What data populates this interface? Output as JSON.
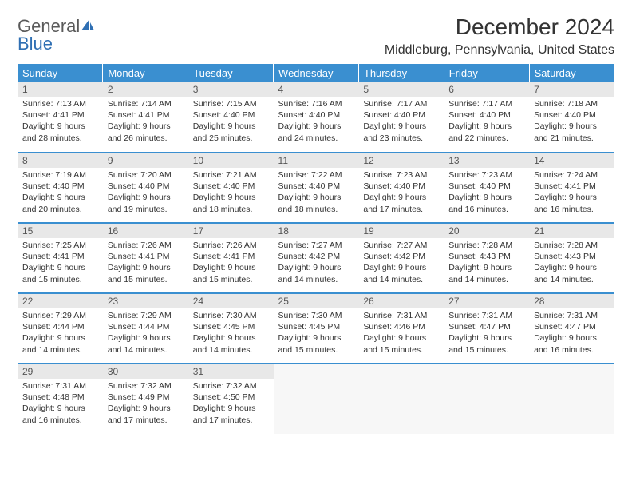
{
  "brand": {
    "part1": "General",
    "part2": "Blue"
  },
  "title": "December 2024",
  "location": "Middleburg, Pennsylvania, United States",
  "colors": {
    "header_bg": "#3a8fd0",
    "header_text": "#ffffff",
    "daynum_bg": "#e8e8e8",
    "border": "#3a8fd0",
    "brand_gray": "#5a5a5a",
    "brand_blue": "#2f6fb3",
    "icon_fill": "#2f6fb3"
  },
  "day_headers": [
    "Sunday",
    "Monday",
    "Tuesday",
    "Wednesday",
    "Thursday",
    "Friday",
    "Saturday"
  ],
  "weeks": [
    [
      {
        "n": "1",
        "sr": "7:13 AM",
        "ss": "4:41 PM",
        "dl": "9 hours and 28 minutes."
      },
      {
        "n": "2",
        "sr": "7:14 AM",
        "ss": "4:41 PM",
        "dl": "9 hours and 26 minutes."
      },
      {
        "n": "3",
        "sr": "7:15 AM",
        "ss": "4:40 PM",
        "dl": "9 hours and 25 minutes."
      },
      {
        "n": "4",
        "sr": "7:16 AM",
        "ss": "4:40 PM",
        "dl": "9 hours and 24 minutes."
      },
      {
        "n": "5",
        "sr": "7:17 AM",
        "ss": "4:40 PM",
        "dl": "9 hours and 23 minutes."
      },
      {
        "n": "6",
        "sr": "7:17 AM",
        "ss": "4:40 PM",
        "dl": "9 hours and 22 minutes."
      },
      {
        "n": "7",
        "sr": "7:18 AM",
        "ss": "4:40 PM",
        "dl": "9 hours and 21 minutes."
      }
    ],
    [
      {
        "n": "8",
        "sr": "7:19 AM",
        "ss": "4:40 PM",
        "dl": "9 hours and 20 minutes."
      },
      {
        "n": "9",
        "sr": "7:20 AM",
        "ss": "4:40 PM",
        "dl": "9 hours and 19 minutes."
      },
      {
        "n": "10",
        "sr": "7:21 AM",
        "ss": "4:40 PM",
        "dl": "9 hours and 18 minutes."
      },
      {
        "n": "11",
        "sr": "7:22 AM",
        "ss": "4:40 PM",
        "dl": "9 hours and 18 minutes."
      },
      {
        "n": "12",
        "sr": "7:23 AM",
        "ss": "4:40 PM",
        "dl": "9 hours and 17 minutes."
      },
      {
        "n": "13",
        "sr": "7:23 AM",
        "ss": "4:40 PM",
        "dl": "9 hours and 16 minutes."
      },
      {
        "n": "14",
        "sr": "7:24 AM",
        "ss": "4:41 PM",
        "dl": "9 hours and 16 minutes."
      }
    ],
    [
      {
        "n": "15",
        "sr": "7:25 AM",
        "ss": "4:41 PM",
        "dl": "9 hours and 15 minutes."
      },
      {
        "n": "16",
        "sr": "7:26 AM",
        "ss": "4:41 PM",
        "dl": "9 hours and 15 minutes."
      },
      {
        "n": "17",
        "sr": "7:26 AM",
        "ss": "4:41 PM",
        "dl": "9 hours and 15 minutes."
      },
      {
        "n": "18",
        "sr": "7:27 AM",
        "ss": "4:42 PM",
        "dl": "9 hours and 14 minutes."
      },
      {
        "n": "19",
        "sr": "7:27 AM",
        "ss": "4:42 PM",
        "dl": "9 hours and 14 minutes."
      },
      {
        "n": "20",
        "sr": "7:28 AM",
        "ss": "4:43 PM",
        "dl": "9 hours and 14 minutes."
      },
      {
        "n": "21",
        "sr": "7:28 AM",
        "ss": "4:43 PM",
        "dl": "9 hours and 14 minutes."
      }
    ],
    [
      {
        "n": "22",
        "sr": "7:29 AM",
        "ss": "4:44 PM",
        "dl": "9 hours and 14 minutes."
      },
      {
        "n": "23",
        "sr": "7:29 AM",
        "ss": "4:44 PM",
        "dl": "9 hours and 14 minutes."
      },
      {
        "n": "24",
        "sr": "7:30 AM",
        "ss": "4:45 PM",
        "dl": "9 hours and 14 minutes."
      },
      {
        "n": "25",
        "sr": "7:30 AM",
        "ss": "4:45 PM",
        "dl": "9 hours and 15 minutes."
      },
      {
        "n": "26",
        "sr": "7:31 AM",
        "ss": "4:46 PM",
        "dl": "9 hours and 15 minutes."
      },
      {
        "n": "27",
        "sr": "7:31 AM",
        "ss": "4:47 PM",
        "dl": "9 hours and 15 minutes."
      },
      {
        "n": "28",
        "sr": "7:31 AM",
        "ss": "4:47 PM",
        "dl": "9 hours and 16 minutes."
      }
    ],
    [
      {
        "n": "29",
        "sr": "7:31 AM",
        "ss": "4:48 PM",
        "dl": "9 hours and 16 minutes."
      },
      {
        "n": "30",
        "sr": "7:32 AM",
        "ss": "4:49 PM",
        "dl": "9 hours and 17 minutes."
      },
      {
        "n": "31",
        "sr": "7:32 AM",
        "ss": "4:50 PM",
        "dl": "9 hours and 17 minutes."
      },
      null,
      null,
      null,
      null
    ]
  ],
  "labels": {
    "sunrise": "Sunrise:",
    "sunset": "Sunset:",
    "daylight": "Daylight:"
  }
}
